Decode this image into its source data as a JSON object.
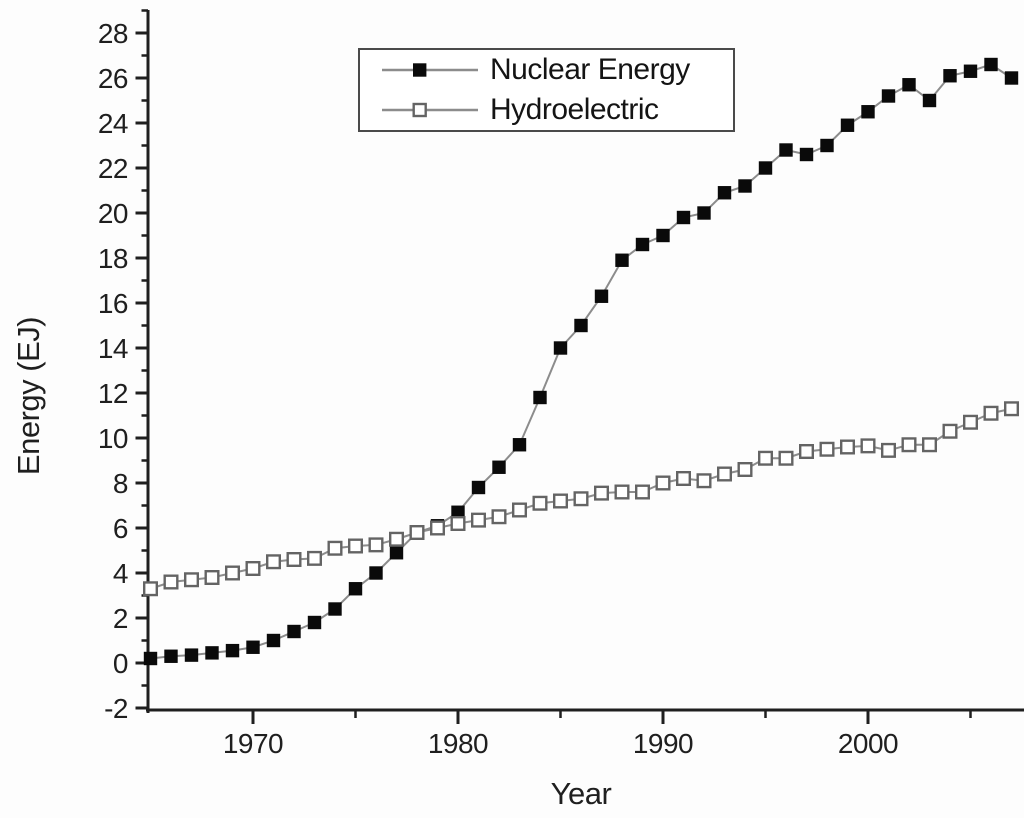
{
  "figure": {
    "background": "#fdfdfd",
    "axis_color": "#1f1f1f",
    "series_line_color": "#8c8c8c",
    "nuclear_marker_color": "#0a0a0a",
    "hydro_marker_border_color": "#646464",
    "legend_border_color": "#4a4a4a"
  },
  "chart_data": {
    "type": "line",
    "title": "",
    "xlabel": "Year",
    "ylabel": "Energy (EJ)",
    "xlim": [
      1964.8,
      2007.6
    ],
    "ylim": [
      -2,
      29
    ],
    "grid": false,
    "legend_position": "top-center-inside",
    "x_major_ticks": [
      1970,
      1980,
      1990,
      2000
    ],
    "x_minor_ticks": [
      1975,
      1985,
      1995,
      2005
    ],
    "y_major_ticks": [
      -2,
      0,
      2,
      4,
      6,
      8,
      10,
      12,
      14,
      16,
      18,
      20,
      22,
      24,
      26,
      28
    ],
    "y_minor_ticks": [
      -1,
      1,
      3,
      5,
      7,
      9,
      11,
      13,
      15,
      17,
      19,
      21,
      23,
      25,
      27,
      29
    ],
    "x": [
      1965,
      1966,
      1967,
      1968,
      1969,
      1970,
      1971,
      1972,
      1973,
      1974,
      1975,
      1976,
      1977,
      1978,
      1979,
      1980,
      1981,
      1982,
      1983,
      1984,
      1985,
      1986,
      1987,
      1988,
      1989,
      1990,
      1991,
      1992,
      1993,
      1994,
      1995,
      1996,
      1997,
      1998,
      1999,
      2000,
      2001,
      2002,
      2003,
      2004,
      2005,
      2006,
      2007
    ],
    "series": [
      {
        "name": "Nuclear Energy",
        "marker": "filled-square",
        "values": [
          0.2,
          0.3,
          0.35,
          0.45,
          0.55,
          0.7,
          1.0,
          1.4,
          1.8,
          2.4,
          3.3,
          4.0,
          4.9,
          5.8,
          6.1,
          6.7,
          7.8,
          8.7,
          9.7,
          11.8,
          14.0,
          15.0,
          16.3,
          17.9,
          18.6,
          19.0,
          19.8,
          20.0,
          20.9,
          21.2,
          22.0,
          22.8,
          22.6,
          23.0,
          23.9,
          24.5,
          25.2,
          25.7,
          25.0,
          26.1,
          26.3,
          26.6,
          26.0
        ]
      },
      {
        "name": "Hydroelectric",
        "marker": "open-square",
        "values": [
          3.3,
          3.6,
          3.7,
          3.8,
          4.0,
          4.2,
          4.5,
          4.6,
          4.65,
          5.1,
          5.2,
          5.25,
          5.5,
          5.8,
          6.0,
          6.2,
          6.35,
          6.5,
          6.8,
          7.1,
          7.2,
          7.3,
          7.55,
          7.6,
          7.6,
          8.0,
          8.2,
          8.1,
          8.4,
          8.6,
          9.1,
          9.1,
          9.4,
          9.5,
          9.6,
          9.65,
          9.45,
          9.7,
          9.7,
          10.3,
          10.7,
          11.1,
          11.3
        ]
      }
    ]
  }
}
